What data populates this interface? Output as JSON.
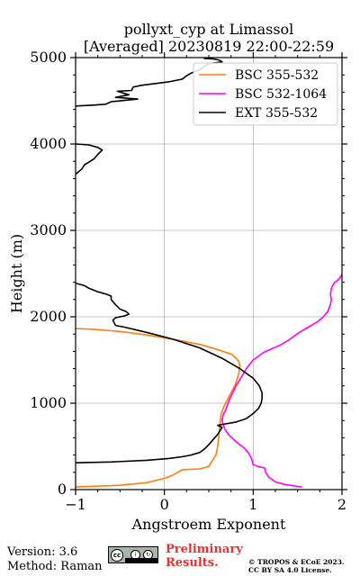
{
  "chart_data": {
    "type": "line",
    "title_line1": "pollyxt_cyp at Limassol",
    "title_line2": "[Averaged] 20230819 22:00-22:59",
    "xlabel": "Angstroem Exponent",
    "ylabel": "Height (m)",
    "xlim": [
      -1,
      2
    ],
    "ylim": [
      0,
      5000
    ],
    "x_ticks": [
      -1,
      0,
      1,
      2
    ],
    "y_ticks": [
      0,
      1000,
      2000,
      3000,
      4000,
      5000
    ],
    "x_tick_labels": [
      "−1",
      "0",
      "1",
      "2"
    ],
    "y_tick_labels": [
      "0",
      "1000",
      "2000",
      "3000",
      "4000",
      "5000"
    ],
    "grid": true,
    "legend_placement": "top-right",
    "series": [
      {
        "name": "BSC 355-532",
        "color": "#ff7f0e",
        "points": [
          [
            -1.0,
            30
          ],
          [
            -0.5,
            50
          ],
          [
            -0.2,
            80
          ],
          [
            0.0,
            130
          ],
          [
            0.1,
            170
          ],
          [
            0.2,
            230
          ],
          [
            0.4,
            240
          ],
          [
            0.5,
            270
          ],
          [
            0.55,
            350
          ],
          [
            0.58,
            400
          ],
          [
            0.6,
            500
          ],
          [
            0.61,
            600
          ],
          [
            0.62,
            700
          ],
          [
            0.63,
            800
          ],
          [
            0.64,
            880
          ],
          [
            0.67,
            960
          ],
          [
            0.7,
            1020
          ],
          [
            0.75,
            1120
          ],
          [
            0.8,
            1220
          ],
          [
            0.84,
            1350
          ],
          [
            0.85,
            1420
          ],
          [
            0.84,
            1480
          ],
          [
            0.8,
            1530
          ],
          [
            0.75,
            1570
          ],
          [
            0.6,
            1620
          ],
          [
            0.4,
            1680
          ],
          [
            0.1,
            1740
          ],
          [
            -0.2,
            1790
          ],
          [
            -0.5,
            1830
          ],
          [
            -0.8,
            1855
          ],
          [
            -1.0,
            1865
          ]
        ]
      },
      {
        "name": "BSC 532-1064",
        "color": "#ff00ff",
        "points": [
          [
            1.55,
            30
          ],
          [
            1.48,
            40
          ],
          [
            1.35,
            60
          ],
          [
            1.25,
            90
          ],
          [
            1.18,
            140
          ],
          [
            1.14,
            200
          ],
          [
            1.13,
            250
          ],
          [
            1.05,
            270
          ],
          [
            1.0,
            290
          ],
          [
            0.98,
            360
          ],
          [
            0.95,
            420
          ],
          [
            0.9,
            480
          ],
          [
            0.8,
            560
          ],
          [
            0.72,
            640
          ],
          [
            0.68,
            700
          ],
          [
            0.66,
            760
          ],
          [
            0.65,
            800
          ],
          [
            0.66,
            860
          ],
          [
            0.69,
            920
          ],
          [
            0.71,
            980
          ],
          [
            0.74,
            1060
          ],
          [
            0.77,
            1120
          ],
          [
            0.8,
            1190
          ],
          [
            0.86,
            1290
          ],
          [
            0.93,
            1410
          ],
          [
            1.0,
            1500
          ],
          [
            1.12,
            1590
          ],
          [
            1.3,
            1670
          ],
          [
            1.4,
            1730
          ],
          [
            1.52,
            1820
          ],
          [
            1.62,
            1880
          ],
          [
            1.72,
            1940
          ],
          [
            1.78,
            1990
          ],
          [
            1.84,
            2060
          ],
          [
            1.87,
            2140
          ],
          [
            1.88,
            2200
          ],
          [
            1.87,
            2260
          ],
          [
            1.88,
            2330
          ],
          [
            1.91,
            2390
          ],
          [
            1.97,
            2440
          ],
          [
            2.0,
            2490
          ]
        ]
      },
      {
        "name": "EXT 355-532",
        "color": "#000000",
        "points": [
          [
            -1.0,
            310
          ],
          [
            -0.6,
            320
          ],
          [
            -0.2,
            340
          ],
          [
            0.05,
            360
          ],
          [
            0.2,
            380
          ],
          [
            0.3,
            400
          ],
          [
            0.4,
            430
          ],
          [
            0.45,
            470
          ],
          [
            0.5,
            520
          ],
          [
            0.55,
            580
          ],
          [
            0.6,
            640
          ],
          [
            0.65,
            720
          ],
          [
            0.6,
            745
          ],
          [
            0.8,
            780
          ],
          [
            0.92,
            820
          ],
          [
            1.0,
            880
          ],
          [
            1.06,
            940
          ],
          [
            1.09,
            1000
          ],
          [
            1.1,
            1060
          ],
          [
            1.1,
            1120
          ],
          [
            1.07,
            1200
          ],
          [
            1.0,
            1290
          ],
          [
            0.85,
            1400
          ],
          [
            0.65,
            1520
          ],
          [
            0.4,
            1640
          ],
          [
            0.1,
            1740
          ],
          [
            -0.2,
            1820
          ],
          [
            -0.45,
            1880
          ],
          [
            -0.55,
            1900
          ],
          [
            -0.58,
            1960
          ],
          [
            -0.55,
            1990
          ],
          [
            -0.45,
            2010
          ],
          [
            -0.4,
            2030
          ],
          [
            -0.43,
            2060
          ],
          [
            -0.5,
            2090
          ],
          [
            -0.55,
            2140
          ],
          [
            -0.6,
            2200
          ],
          [
            -0.6,
            2240
          ],
          [
            -0.65,
            2260
          ],
          [
            -0.75,
            2290
          ],
          [
            -0.85,
            2330
          ],
          [
            -0.9,
            2360
          ],
          [
            -1.0,
            2390
          ],
          [
            null,
            null
          ],
          [
            -1.0,
            3650
          ],
          [
            -0.93,
            3710
          ],
          [
            -0.9,
            3760
          ],
          [
            -0.85,
            3790
          ],
          [
            -0.79,
            3830
          ],
          [
            -0.75,
            3880
          ],
          [
            -0.7,
            3930
          ],
          [
            -0.75,
            3960
          ],
          [
            -0.85,
            3990
          ],
          [
            -1.0,
            4000
          ],
          [
            null,
            null
          ],
          [
            -1.0,
            4440
          ],
          [
            -0.8,
            4450
          ],
          [
            -0.66,
            4460
          ],
          [
            -0.6,
            4490
          ],
          [
            -0.3,
            4520
          ],
          [
            -0.55,
            4540
          ],
          [
            -0.4,
            4570
          ],
          [
            -0.53,
            4610
          ],
          [
            -0.37,
            4620
          ],
          [
            -0.35,
            4660
          ],
          [
            -0.25,
            4680
          ],
          [
            -0.1,
            4700
          ],
          [
            0.05,
            4720
          ],
          [
            0.2,
            4750
          ],
          [
            0.25,
            4790
          ],
          [
            0.3,
            4820
          ],
          [
            0.4,
            4860
          ],
          [
            0.45,
            4900
          ],
          [
            0.5,
            4930
          ],
          [
            0.65,
            4950
          ],
          [
            0.62,
            4970
          ],
          [
            0.55,
            4985
          ],
          [
            0.45,
            4990
          ],
          [
            0.48,
            5000
          ]
        ]
      }
    ]
  },
  "footer": {
    "version": "Version: 3.6",
    "method": "Method: Raman",
    "preliminary_line1": "Preliminary",
    "preliminary_line2": "Results.",
    "copyright_line1": "© TROPOS & ECoE 2023.",
    "copyright_line2": "CC BY SA 4.0 License."
  }
}
